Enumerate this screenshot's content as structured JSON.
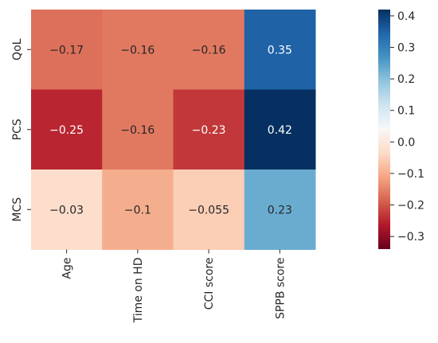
{
  "chart_data": {
    "type": "heatmap",
    "title": "",
    "xlabel": "",
    "ylabel": "",
    "columns": [
      "Age",
      "Time on HD",
      "CCI score",
      "SPPB score"
    ],
    "rows": [
      "QoL",
      "PCS",
      "MCS"
    ],
    "values": [
      [
        -0.17,
        -0.16,
        -0.16,
        0.35
      ],
      [
        -0.25,
        -0.16,
        -0.23,
        0.42
      ],
      [
        -0.03,
        -0.1,
        -0.055,
        0.23
      ]
    ],
    "cell_labels": [
      [
        "−0.17",
        "−0.16",
        "−0.16",
        "0.35"
      ],
      [
        "−0.25",
        "−0.16",
        "−0.23",
        "0.42"
      ],
      [
        "−0.03",
        "−0.1",
        "−0.055",
        "0.23"
      ]
    ],
    "colormap": "RdBu",
    "color_range": [
      -0.34,
      0.42
    ],
    "colorbar": {
      "location": "right",
      "ticks": [
        0.4,
        0.3,
        0.2,
        0.1,
        0.0,
        -0.1,
        -0.2,
        -0.3
      ],
      "tick_labels": [
        "0.4",
        "0.3",
        "0.2",
        "0.1",
        "0.0",
        "−0.1",
        "−0.2",
        "−0.3"
      ]
    },
    "grid": false
  }
}
